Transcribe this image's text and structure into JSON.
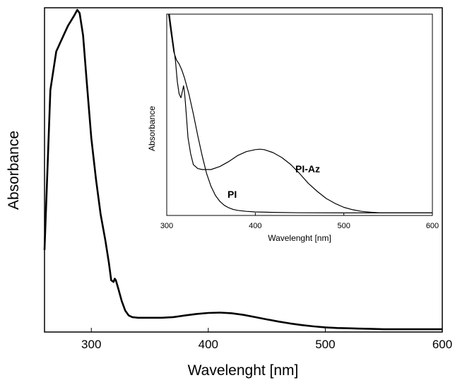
{
  "chart_data": [
    {
      "type": "line",
      "title": "",
      "xlabel": "Wavelenght [nm]",
      "ylabel": "Absorbance",
      "xlim": [
        260,
        600
      ],
      "ylim": [
        0,
        1
      ],
      "xticks": [
        300,
        400,
        500,
        600
      ],
      "yticks": [],
      "grid": false,
      "series": [
        {
          "x": [
            260,
            265,
            270,
            275,
            280,
            285,
            288,
            290,
            293,
            296,
            300,
            304,
            308,
            312,
            315,
            317,
            319,
            320,
            321,
            323,
            326,
            329,
            332,
            335,
            340,
            350,
            360,
            370,
            380,
            390,
            400,
            410,
            420,
            430,
            440,
            450,
            460,
            470,
            480,
            490,
            500,
            510,
            520,
            530,
            540,
            550,
            560,
            580,
            600
          ],
          "y": [
            0.25,
            0.75,
            0.87,
            0.91,
            0.95,
            0.98,
            1.0,
            0.99,
            0.92,
            0.78,
            0.6,
            0.47,
            0.36,
            0.28,
            0.21,
            0.155,
            0.15,
            0.16,
            0.155,
            0.13,
            0.09,
            0.06,
            0.045,
            0.04,
            0.038,
            0.038,
            0.038,
            0.04,
            0.045,
            0.05,
            0.053,
            0.054,
            0.052,
            0.047,
            0.04,
            0.033,
            0.026,
            0.02,
            0.015,
            0.011,
            0.008,
            0.006,
            0.005,
            0.004,
            0.003,
            0.002,
            0.002,
            0.002,
            0.002
          ]
        }
      ]
    },
    {
      "type": "line",
      "title": "",
      "xlabel": "Wavelenght [nm]",
      "ylabel": "Absorbance",
      "xlim": [
        300,
        600
      ],
      "ylim": [
        0,
        1
      ],
      "xticks": [
        300,
        400,
        500,
        600
      ],
      "yticks": [],
      "grid": false,
      "series": [
        {
          "name": "PI-Az",
          "x": [
            303,
            305,
            308,
            310,
            312,
            314,
            316,
            318,
            319,
            320,
            321,
            322,
            324,
            327,
            330,
            335,
            340,
            350,
            360,
            370,
            380,
            390,
            400,
            405,
            410,
            420,
            430,
            440,
            450,
            460,
            470,
            480,
            490,
            500,
            510,
            520,
            530,
            540,
            550,
            560,
            580,
            600
          ],
          "y": [
            1.0,
            0.93,
            0.83,
            0.76,
            0.66,
            0.6,
            0.58,
            0.62,
            0.64,
            0.61,
            0.56,
            0.5,
            0.38,
            0.3,
            0.245,
            0.225,
            0.22,
            0.22,
            0.235,
            0.26,
            0.29,
            0.31,
            0.32,
            0.322,
            0.32,
            0.305,
            0.28,
            0.245,
            0.2,
            0.15,
            0.11,
            0.075,
            0.05,
            0.03,
            0.018,
            0.01,
            0.006,
            0.003,
            0.002,
            0.002,
            0.002,
            0.002
          ]
        },
        {
          "name": "PI",
          "x": [
            302,
            305,
            308,
            311,
            314,
            317,
            320,
            325,
            330,
            335,
            340,
            345,
            350,
            355,
            360,
            365,
            370,
            375,
            380,
            390,
            400,
            420,
            450,
            500,
            550,
            600
          ],
          "y": [
            1.0,
            0.9,
            0.81,
            0.77,
            0.75,
            0.72,
            0.68,
            0.6,
            0.5,
            0.39,
            0.29,
            0.2,
            0.135,
            0.09,
            0.06,
            0.04,
            0.028,
            0.02,
            0.015,
            0.01,
            0.007,
            0.005,
            0.003,
            0.002,
            0.002,
            0.002
          ]
        }
      ]
    }
  ]
}
